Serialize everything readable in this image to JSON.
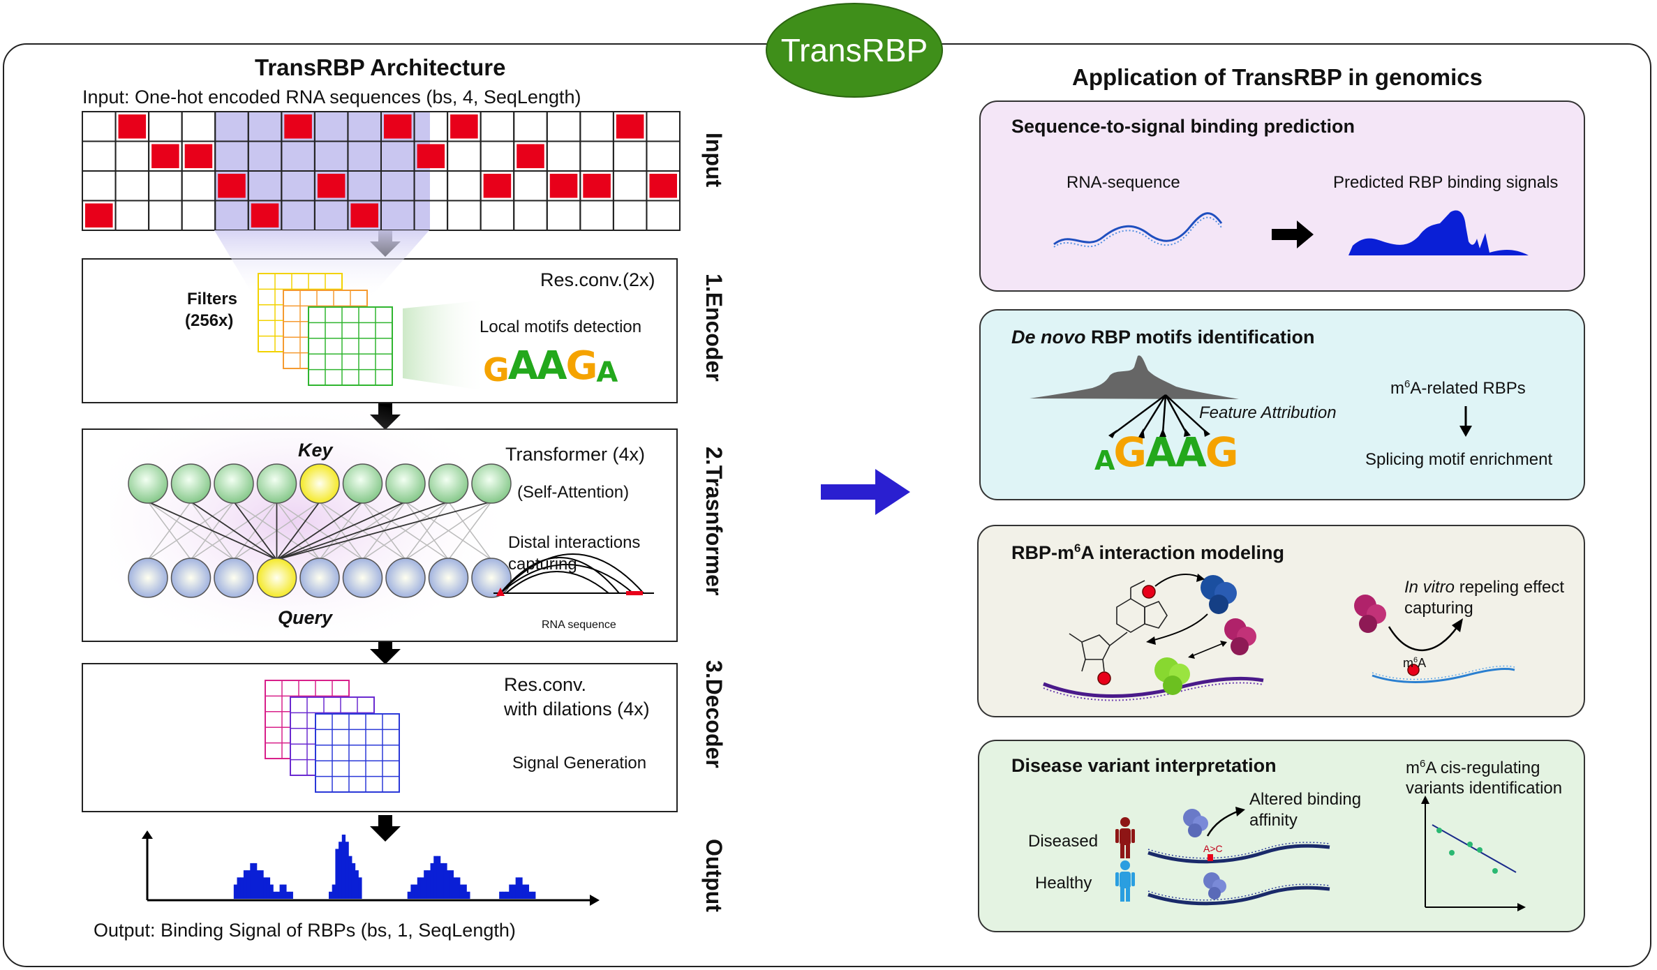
{
  "badge": "TransRBP",
  "left": {
    "title": "TransRBP Architecture",
    "input_caption": "Input: One-hot encoded RNA sequences (bs, 4, SeqLength)",
    "stage_labels": [
      "Input",
      "1.Encoder",
      "2.Trasnformer",
      "3.Decoder",
      "Output"
    ],
    "encoder": {
      "filters_label": "Filters",
      "filters_count": "(256x)",
      "block_label": "Res.conv.(2x)",
      "motif_caption": "Local motifs detection",
      "motif_logo": [
        "G",
        "A",
        "A",
        "G",
        "A"
      ]
    },
    "transformer": {
      "block_label": "Transformer (4x)",
      "self_attention": "(Self-Attention)",
      "key_label": "Key",
      "query_label": "Query",
      "distal_caption_1": "Distal interactions",
      "distal_caption_2": "capturing",
      "rna_caption": "RNA sequence"
    },
    "decoder": {
      "block_label_1": "Res.conv.",
      "block_label_2": "with dilations (4x)",
      "signal_caption": "Signal Generation"
    },
    "output_caption": "Output: Binding Signal of RBPs (bs, 1, SeqLength)"
  },
  "right": {
    "title": "Application of TransRBP in genomics",
    "panel1": {
      "title": "Sequence-to-signal binding prediction",
      "rna_label": "RNA-sequence",
      "signal_label": "Predicted RBP binding signals",
      "bg": "#f4e6f7"
    },
    "panel2": {
      "title_italic": "De novo",
      "title_rest": " RBP motifs identification",
      "feature_attr": "Feature Attribution",
      "m6a_rbps_pre": "m",
      "m6a_rbps_sup": "6",
      "m6a_rbps_post": "A-related RBPs",
      "splicing": "Splicing motif enrichment",
      "motif_logo": [
        "A",
        "G",
        "A",
        "A",
        "G"
      ],
      "bg": "#dff4f6"
    },
    "panel3": {
      "title_pre": "RBP-m",
      "title_sup": "6",
      "title_post": "A interaction modeling",
      "invitro_italic": "In vitro",
      "invitro_rest": " repeling effect",
      "capturing": "capturing",
      "m6a_pre": "m",
      "m6a_sup": "6",
      "m6a_post": "A",
      "bg": "#f2f1e8"
    },
    "panel4": {
      "title": "Disease variant interpretation",
      "cis_pre": "m",
      "cis_sup": "6",
      "cis_post": "A cis-regulating",
      "cis_line2": "variants identification",
      "altered_1": "Altered binding",
      "altered_2": "affinity",
      "diseased": "Diseased",
      "healthy": "Healthy",
      "mutation": "A>C",
      "bg": "#e4f3e2"
    }
  },
  "colors": {
    "onehot_red": "#e8001a",
    "highlight": "#c9c6f0",
    "signal_blue": "#0a1fd6",
    "big_arrow": "#2a1fd0",
    "badge_green": "#3f8f1a"
  },
  "chart_data": {
    "type": "area",
    "title": "",
    "xlabel": "",
    "ylabel": "",
    "signal_values": [
      0,
      0,
      0,
      0,
      0,
      0,
      0,
      0,
      0,
      0,
      0,
      0,
      0,
      0,
      0,
      0,
      0,
      2,
      3,
      3,
      4,
      4,
      5,
      5,
      4,
      4,
      3,
      3,
      2,
      1,
      1,
      2,
      2,
      1,
      1,
      0,
      0,
      0,
      0,
      0,
      0,
      0,
      0,
      0,
      0,
      0,
      1,
      2,
      7,
      8,
      9,
      8,
      6,
      5,
      4,
      3,
      0,
      0,
      0,
      0,
      0,
      0,
      0,
      0,
      0,
      0,
      0,
      0,
      0,
      0,
      1,
      2,
      2,
      3,
      3,
      4,
      4,
      5,
      6,
      6,
      5,
      5,
      4,
      4,
      3,
      3,
      2,
      2,
      1,
      0,
      0,
      0,
      0,
      0,
      0,
      0,
      0,
      0,
      1,
      1,
      1,
      2,
      2,
      3,
      3,
      2,
      2,
      1,
      1,
      0,
      0,
      0,
      0,
      0,
      0
    ]
  }
}
